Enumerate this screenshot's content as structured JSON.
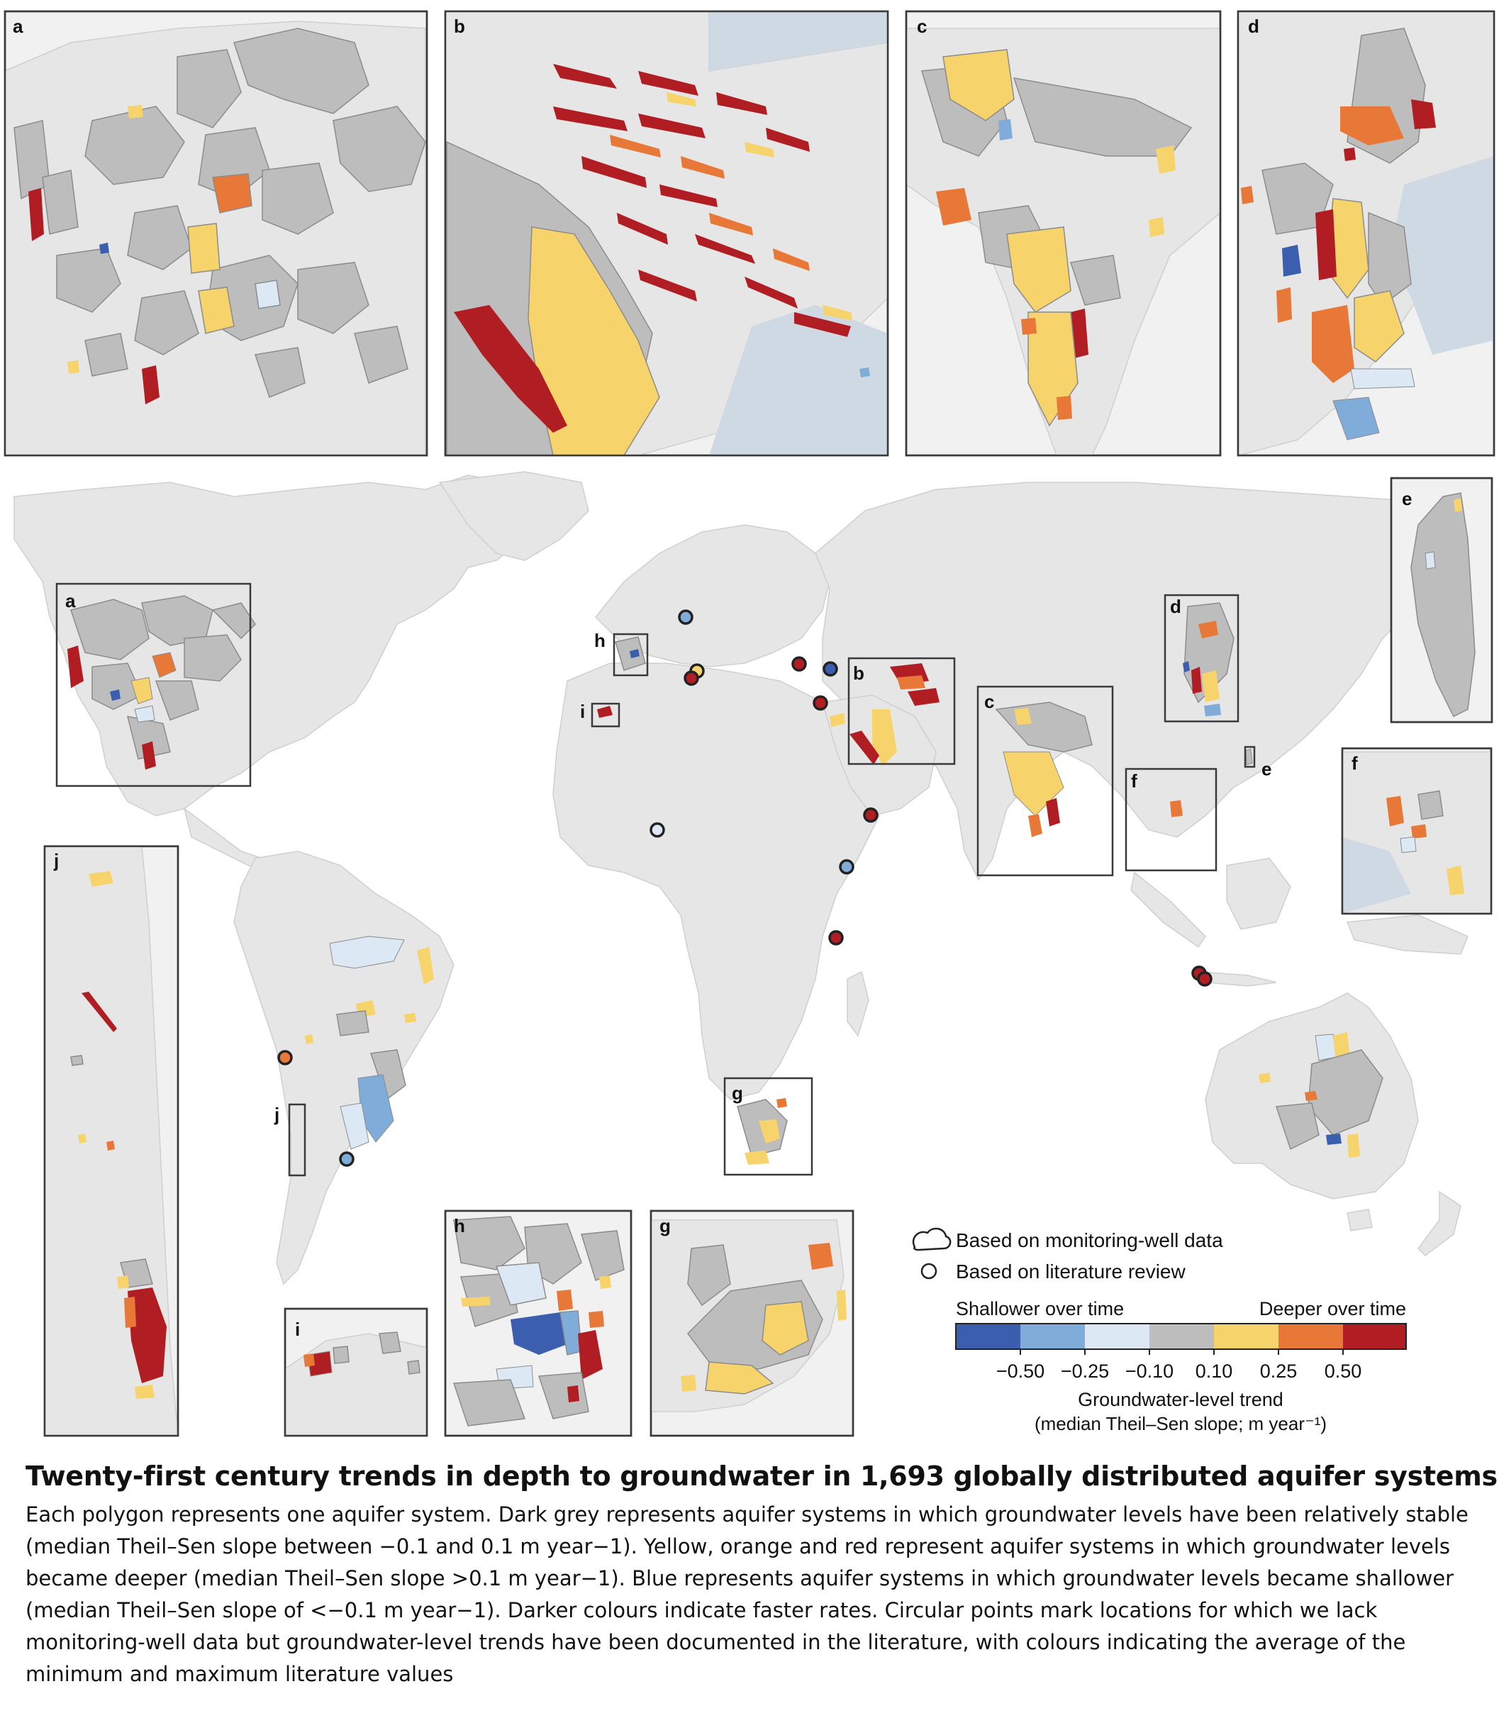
{
  "colors": {
    "shallow_fast": "#3b5fae",
    "shallow_mid": "#80acd9",
    "shallow_slow": "#dce9f5",
    "stable": "#bdbdbd",
    "deep_slow": "#f7d36b",
    "deep_mid": "#e87837",
    "deep_fast": "#b01d23",
    "land": "#e6e6e6"
  },
  "panels": {
    "a": "a",
    "b": "b",
    "c": "c",
    "d": "d",
    "e": "e",
    "f": "f",
    "g": "g",
    "h": "h",
    "i": "i",
    "j": "j"
  },
  "legend": {
    "polygon_label": "Based on monitoring-well data",
    "circle_label": "Based on literature review",
    "shallower": "Shallower over time",
    "deeper": "Deeper over time",
    "ticks": [
      "−0.50",
      "−0.25",
      "−0.10",
      "0.10",
      "0.25",
      "0.50"
    ],
    "axis_title": "Groundwater-level trend",
    "axis_subtitle": "(median Theil–Sen slope; m year⁻¹)"
  },
  "literature_points": [
    {
      "region": "central Europe",
      "color": "shallow_mid"
    },
    {
      "region": "Spain east",
      "color": "deep_slow"
    },
    {
      "region": "Spain south-east",
      "color": "deep_fast"
    },
    {
      "region": "Greece",
      "color": "deep_fast"
    },
    {
      "region": "Turkey",
      "color": "shallow_fast"
    },
    {
      "region": "Nile delta",
      "color": "deep_fast"
    },
    {
      "region": "Yemen",
      "color": "deep_fast"
    },
    {
      "region": "Ethiopia",
      "color": "shallow_mid"
    },
    {
      "region": "Kenya",
      "color": "deep_fast"
    },
    {
      "region": "West Africa",
      "color": "shallow_slow"
    },
    {
      "region": "Java",
      "color": "deep_fast"
    },
    {
      "region": "Java",
      "color": "deep_fast"
    },
    {
      "region": "Peru",
      "color": "deep_mid"
    },
    {
      "region": "Argentina",
      "color": "shallow_mid"
    }
  ],
  "caption": {
    "title": "Twenty-first century trends in depth to groundwater in 1,693 globally distributed aquifer systems.",
    "body": "Each polygon represents one aquifer system. Dark grey represents aquifer systems in which groundwater levels have been relatively stable (median Theil–Sen slope between −0.1 and 0.1 m year−1). Yellow, orange and red represent aquifer systems in which groundwater levels became deeper (median Theil–Sen slope >0.1 m year−1). Blue represents aquifer systems in which groundwater levels became shallower (median Theil–Sen slope of <−0.1 m year−1). Darker colours indicate faster rates. Circular points mark locations for which we lack monitoring-well data but groundwater-level trends have been documented in the literature, with colours indicating the average of the minimum and maximum literature values"
  }
}
